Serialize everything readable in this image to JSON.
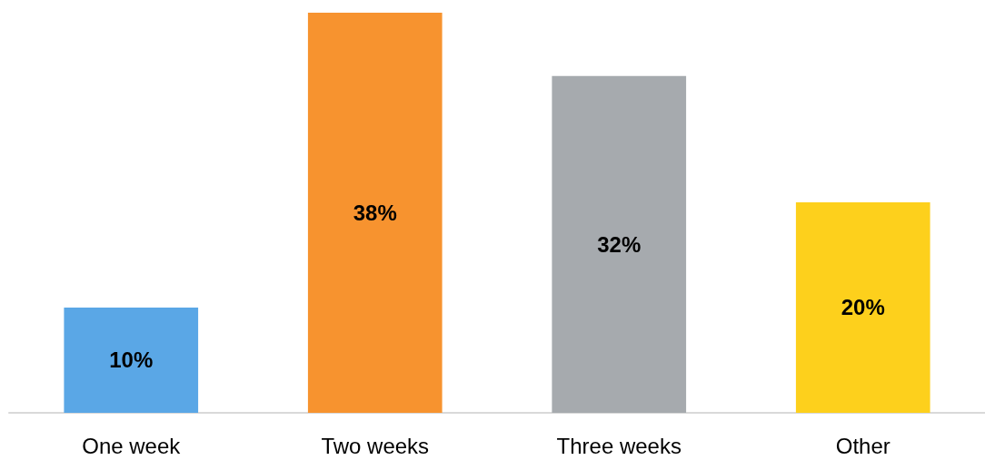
{
  "chart_data": {
    "type": "bar",
    "categories": [
      "One week",
      "Two weeks",
      "Three weeks",
      "Other"
    ],
    "values": [
      10,
      38,
      32,
      20
    ],
    "colors": [
      "#5aa7e6",
      "#f7932f",
      "#a6aaae",
      "#fdd01c"
    ],
    "value_labels": [
      "10%",
      "38%",
      "32%",
      "20%"
    ]
  }
}
